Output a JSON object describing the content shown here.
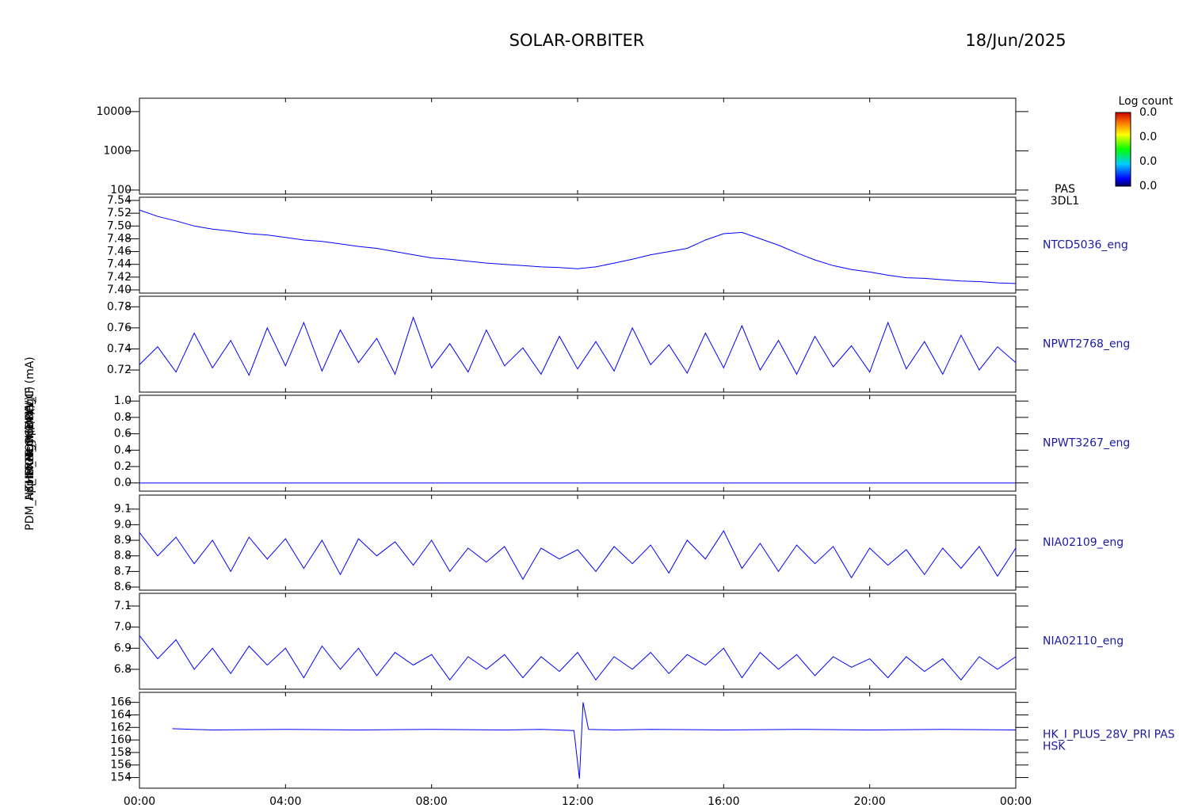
{
  "header": {
    "title": "SOLAR-ORBITER",
    "date": "18/Jun/2025"
  },
  "y_axis_labels": [
    "Energy (eV)",
    "Approx Temp (DegC)",
    "THERM_CH14 (V)",
    "HR_MON (mV)",
    "PDM_HK_IMON_PCDRW_IF (mA)"
  ],
  "chart_data": [
    {
      "type": "spectrogram",
      "log": true,
      "xlim": [
        0,
        24
      ],
      "ylim": [
        79,
        21900
      ],
      "yticks": [
        100,
        1000,
        10000
      ],
      "label_lines": [
        "PAS",
        "3DL1"
      ],
      "colorbar_title": "Log count",
      "colorbar_labels": [
        "0.0",
        "0.0",
        "0.0",
        "0.0"
      ]
    },
    {
      "type": "line",
      "xlim": [
        0,
        24
      ],
      "ylim": [
        7.395,
        7.545
      ],
      "color": "#0000ff",
      "label_lines": [
        "NTCD5036_eng"
      ],
      "yticks": [
        {
          "value": 7.4,
          "label": "7.40"
        },
        7.42,
        7.44,
        7.46,
        7.48,
        {
          "value": 7.5,
          "label": "7.50"
        },
        7.52,
        7.54
      ],
      "x": [
        0,
        0.5,
        1,
        1.5,
        2,
        2.5,
        3,
        3.5,
        4,
        4.5,
        5,
        5.5,
        6,
        6.5,
        7,
        7.5,
        8,
        8.5,
        9,
        9.5,
        10,
        10.5,
        11,
        11.5,
        12,
        12.5,
        13,
        13.5,
        14,
        14.5,
        15,
        15.5,
        16,
        16.5,
        17,
        17.5,
        18,
        18.5,
        19,
        19.5,
        20,
        20.5,
        21,
        21.5,
        22,
        22.5,
        23,
        23.5,
        24
      ],
      "values": [
        7.525,
        7.515,
        7.508,
        7.5,
        7.495,
        7.492,
        7.488,
        7.486,
        7.482,
        7.478,
        7.476,
        7.472,
        7.468,
        7.465,
        7.46,
        7.455,
        7.45,
        7.448,
        7.445,
        7.442,
        7.44,
        7.438,
        7.436,
        7.435,
        7.433,
        7.436,
        7.442,
        7.448,
        7.455,
        7.46,
        7.465,
        7.478,
        7.488,
        7.49,
        7.48,
        7.47,
        7.458,
        7.447,
        7.438,
        7.432,
        7.428,
        7.423,
        7.419,
        7.418,
        7.416,
        7.414,
        7.413,
        7.411,
        7.41
      ]
    },
    {
      "type": "line",
      "xlim": [
        0,
        24
      ],
      "ylim": [
        0.699,
        0.79
      ],
      "color": "#0000ff",
      "label_lines": [
        "NPWT2768_eng"
      ],
      "yticks": [
        0.72,
        0.74,
        0.76,
        0.78
      ],
      "x": [
        0,
        0.5,
        1,
        1.5,
        2,
        2.5,
        3,
        3.5,
        4,
        4.5,
        5,
        5.5,
        6,
        6.5,
        7,
        7.5,
        8,
        8.5,
        9,
        9.5,
        10,
        10.5,
        11,
        11.5,
        12,
        12.5,
        13,
        13.5,
        14,
        14.5,
        15,
        15.5,
        16,
        16.5,
        17,
        17.5,
        18,
        18.5,
        19,
        19.5,
        20,
        20.5,
        21,
        21.5,
        22,
        22.5,
        23,
        23.5,
        24
      ],
      "values": [
        0.725,
        0.742,
        0.718,
        0.755,
        0.722,
        0.748,
        0.715,
        0.76,
        0.724,
        0.765,
        0.719,
        0.758,
        0.727,
        0.75,
        0.716,
        0.77,
        0.722,
        0.745,
        0.718,
        0.758,
        0.724,
        0.741,
        0.716,
        0.752,
        0.721,
        0.747,
        0.719,
        0.76,
        0.725,
        0.744,
        0.717,
        0.755,
        0.722,
        0.762,
        0.72,
        0.748,
        0.716,
        0.752,
        0.723,
        0.743,
        0.718,
        0.765,
        0.721,
        0.747,
        0.716,
        0.753,
        0.72,
        0.742,
        0.727
      ]
    },
    {
      "type": "line",
      "xlim": [
        0,
        24
      ],
      "ylim": [
        -0.1,
        1.07
      ],
      "color": "#0000ff",
      "label_lines": [
        "NPWT3267_eng"
      ],
      "yticks": [
        {
          "value": 0,
          "label": "0.0"
        },
        0.2,
        0.4,
        0.6,
        0.8,
        {
          "value": 1,
          "label": "1.0"
        }
      ],
      "x": [
        0,
        2,
        4,
        6,
        8,
        10,
        12,
        14,
        16,
        18,
        20,
        22,
        24
      ],
      "values": [
        0,
        0,
        0,
        0,
        0,
        0,
        0,
        0,
        0,
        0,
        0,
        0,
        0
      ]
    },
    {
      "type": "line",
      "xlim": [
        0,
        24
      ],
      "ylim": [
        8.58,
        9.19
      ],
      "color": "#0000ff",
      "label_lines": [
        "NIA02109_eng"
      ],
      "yticks": [
        8.6,
        8.7,
        8.8,
        8.9,
        {
          "value": 9.0,
          "label": "9.0"
        },
        9.1
      ],
      "x": [
        0,
        0.5,
        1,
        1.5,
        2,
        2.5,
        3,
        3.5,
        4,
        4.5,
        5,
        5.5,
        6,
        6.5,
        7,
        7.5,
        8,
        8.5,
        9,
        9.5,
        10,
        10.5,
        11,
        11.5,
        12,
        12.5,
        13,
        13.5,
        14,
        14.5,
        15,
        15.5,
        16,
        16.5,
        17,
        17.5,
        18,
        18.5,
        19,
        19.5,
        20,
        20.5,
        21,
        21.5,
        22,
        22.5,
        23,
        23.5,
        24
      ],
      "values": [
        8.95,
        8.8,
        8.92,
        8.75,
        8.9,
        8.7,
        8.92,
        8.78,
        8.91,
        8.72,
        8.9,
        8.68,
        8.91,
        8.8,
        8.89,
        8.74,
        8.9,
        8.7,
        8.85,
        8.76,
        8.86,
        8.65,
        8.85,
        8.78,
        8.84,
        8.7,
        8.86,
        8.75,
        8.87,
        8.69,
        8.9,
        8.78,
        8.96,
        8.72,
        8.88,
        8.7,
        8.87,
        8.75,
        8.86,
        8.66,
        8.85,
        8.74,
        8.84,
        8.68,
        8.85,
        8.72,
        8.86,
        8.67,
        8.85
      ]
    },
    {
      "type": "line",
      "xlim": [
        0,
        24
      ],
      "ylim": [
        6.706,
        7.16
      ],
      "color": "#0000ff",
      "label_lines": [
        "NIA02110_eng"
      ],
      "yticks": [
        6.8,
        6.9,
        {
          "value": 7.0,
          "label": "7.0"
        },
        7.1
      ],
      "x": [
        0,
        0.5,
        1,
        1.5,
        2,
        2.5,
        3,
        3.5,
        4,
        4.5,
        5,
        5.5,
        6,
        6.5,
        7,
        7.5,
        8,
        8.5,
        9,
        9.5,
        10,
        10.5,
        11,
        11.5,
        12,
        12.5,
        13,
        13.5,
        14,
        14.5,
        15,
        15.5,
        16,
        16.5,
        17,
        17.5,
        18,
        18.5,
        19,
        19.5,
        20,
        20.5,
        21,
        21.5,
        22,
        22.5,
        23,
        23.5,
        24
      ],
      "values": [
        6.96,
        6.85,
        6.94,
        6.8,
        6.9,
        6.78,
        6.91,
        6.82,
        6.9,
        6.76,
        6.91,
        6.8,
        6.9,
        6.77,
        6.88,
        6.82,
        6.87,
        6.75,
        6.86,
        6.8,
        6.87,
        6.76,
        6.86,
        6.79,
        6.88,
        6.75,
        6.86,
        6.8,
        6.88,
        6.78,
        6.87,
        6.82,
        6.9,
        6.76,
        6.88,
        6.8,
        6.87,
        6.77,
        6.86,
        6.81,
        6.85,
        6.76,
        6.86,
        6.79,
        6.85,
        6.75,
        6.86,
        6.8,
        6.86
      ]
    },
    {
      "type": "line",
      "xlim": [
        0,
        24
      ],
      "ylim": [
        152.3,
        167.6
      ],
      "color": "#0000ff",
      "label_lines": [
        "HK_I_PLUS_28V_PRI PAS",
        "HSK"
      ],
      "yticks": [
        154,
        156,
        158,
        160,
        162,
        164,
        166
      ],
      "x": [
        0.9,
        2,
        4,
        6,
        8,
        10,
        11,
        11.9,
        12.05,
        12.15,
        12.3,
        13,
        14,
        16,
        18,
        20,
        22,
        24
      ],
      "values": [
        161.8,
        161.6,
        161.7,
        161.6,
        161.7,
        161.6,
        161.7,
        161.5,
        153.8,
        166.0,
        161.7,
        161.6,
        161.7,
        161.6,
        161.7,
        161.6,
        161.7,
        161.6
      ],
      "xticks": [
        {
          "value": 0,
          "label": "00:00"
        },
        {
          "value": 4,
          "label": "04:00"
        },
        {
          "value": 8,
          "label": "08:00"
        },
        {
          "value": 12,
          "label": "12:00"
        },
        {
          "value": 16,
          "label": "16:00"
        },
        {
          "value": 20,
          "label": "20:00"
        },
        {
          "value": 24,
          "label": "00:00"
        }
      ]
    }
  ]
}
